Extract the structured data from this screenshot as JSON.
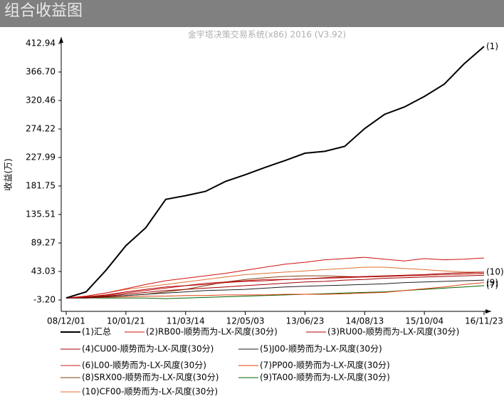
{
  "chart_data": {
    "type": "line",
    "title": "组合收益图",
    "subtitle": "金宇塔决策交易系统(x86) 2016 (V3.92)",
    "y_label": "收益(万)",
    "x": [
      "08/12/01",
      null,
      null,
      "10/01/21",
      null,
      null,
      "11/03/14",
      null,
      null,
      "12/05/03",
      null,
      null,
      "13/06/23",
      null,
      null,
      "14/08/13",
      null,
      null,
      "15/10/04",
      null,
      null,
      "16/11/23"
    ],
    "ylim": [
      -21.7,
      425.7
    ],
    "yticks": [
      {
        "value": -3.2,
        "label": "-3.20"
      },
      43.03,
      {
        "value": 89.27,
        "label": "89.27"
      },
      135.51,
      181.75,
      227.99,
      274.22,
      320.46,
      {
        "value": 366.7,
        "label": "366.70"
      },
      412.94
    ],
    "annotations": [
      "(1)",
      "(9)",
      "(10)",
      "(7)"
    ],
    "series": [
      {
        "name": "(1)汇总",
        "color": "#000000",
        "values": [
          0,
          10,
          45,
          85,
          114,
          160,
          166,
          173,
          189,
          200,
          212,
          223,
          235,
          238,
          246,
          275,
          298,
          310,
          327,
          347,
          380,
          408
        ]
      },
      {
        "name": "(2)RB00-顺势而为-LX-风度(30分)",
        "color": "#d01010",
        "values": [
          0,
          3,
          8,
          15,
          22,
          28,
          32,
          36,
          40,
          45,
          50,
          55,
          58,
          62,
          64,
          66,
          63,
          60,
          64,
          62,
          63,
          65
        ]
      },
      {
        "name": "(3)RU00-顺势而为-LX-风度(30分)",
        "color": "#b00000",
        "values": [
          0,
          2,
          5,
          10,
          14,
          18,
          20,
          22,
          25,
          27,
          28,
          30,
          31,
          33,
          34,
          35,
          36,
          37,
          38,
          40,
          41,
          42
        ]
      },
      {
        "name": "(4)CU00-顺势而为-LX-风度(30分)",
        "color": "#a00000",
        "values": [
          0,
          1,
          3,
          6,
          9,
          12,
          14,
          16,
          18,
          20,
          22,
          24,
          26,
          27,
          29,
          30,
          32,
          33,
          34,
          35,
          36,
          37
        ]
      },
      {
        "name": "(5)J00-顺势而为-LX-风度(30分)",
        "color": "#202020",
        "values": [
          0,
          0,
          2,
          4,
          6,
          8,
          10,
          12,
          13,
          14,
          16,
          18,
          19,
          20,
          21,
          22,
          23,
          25,
          26,
          27,
          28,
          29
        ]
      },
      {
        "name": "(6)L00-顺势而为-LX-风度(30分)",
        "color": "#c02020",
        "values": [
          0,
          2,
          4,
          8,
          12,
          16,
          20,
          24,
          26,
          28,
          30,
          30,
          31,
          32,
          33,
          34,
          35,
          36,
          37,
          38,
          39,
          40
        ]
      },
      {
        "name": "(7)PP00-顺势而为-LX-风度(30分)",
        "color": "#e04010",
        "values": [
          0,
          0,
          1,
          2,
          3,
          3,
          4,
          4,
          5,
          5,
          5,
          6,
          6,
          6,
          7,
          8,
          9,
          12,
          15,
          18,
          22,
          25
        ]
      },
      {
        "name": "(8)SRX00-顺势而为-LX-风度(30分)",
        "color": "#804010",
        "values": [
          0,
          1,
          2,
          4,
          6,
          10,
          14,
          20,
          26,
          30,
          33,
          35,
          36,
          36,
          35,
          34,
          35,
          36,
          37,
          38,
          39,
          40
        ]
      },
      {
        "name": "(9)TA00-顺势而为-LX-风度(30分)",
        "color": "#006400",
        "values": [
          0,
          0,
          0,
          0,
          0,
          -1,
          0,
          1,
          2,
          3,
          4,
          5,
          6,
          7,
          8,
          9,
          10,
          12,
          14,
          16,
          18,
          20
        ]
      },
      {
        "name": "(10)CF00-顺势而为-LX-风度(30分)",
        "color": "#e07030",
        "values": [
          0,
          3,
          8,
          14,
          18,
          22,
          26,
          30,
          34,
          38,
          40,
          42,
          44,
          46,
          48,
          50,
          50,
          48,
          46,
          44,
          42,
          42
        ]
      }
    ]
  }
}
